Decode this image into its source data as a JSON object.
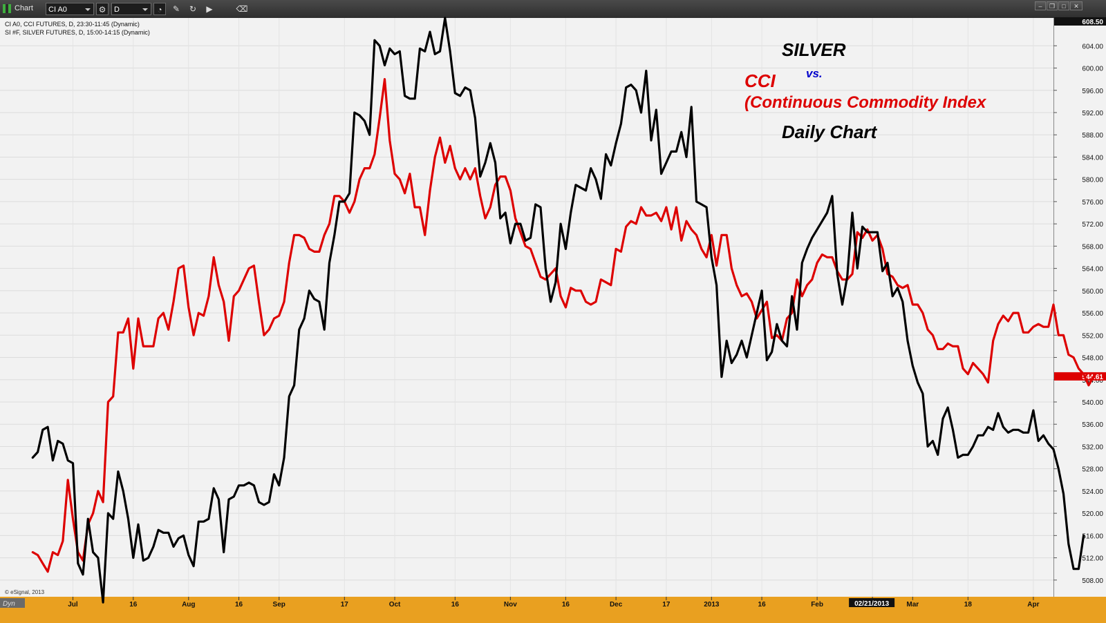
{
  "window": {
    "title": "Chart",
    "symbol_value": "CI A0",
    "interval_value": "D"
  },
  "info": {
    "line1": "CI A0, CCI FUTURES, D, 23:30-11:45 (Dynamic)",
    "line2": "SI #F, SILVER FUTURES, D, 15:00-14:15 (Dynamic)",
    "copyright": "© eSignal, 2013",
    "dyn": "Dyn"
  },
  "toolbar": {
    "icons": [
      "settings-icon",
      "cursor-icon",
      "pencil-icon",
      "refresh-icon",
      "play-icon",
      "eraser-icon"
    ]
  },
  "colors": {
    "cci": "#dd0000",
    "silver": "#000000",
    "vs": "#0000cc",
    "background": "#f2f2f2",
    "axis": "#e9a020"
  },
  "annotations": {
    "silver": "SILVER",
    "vs": "vs.",
    "cci": "CCI",
    "cci_full": "(Continuous Commodity Index",
    "daily": "Daily Chart"
  },
  "chart_data": {
    "type": "line",
    "ylim": [
      505,
      609
    ],
    "y_ticks": [
      508,
      512,
      516,
      520,
      524,
      528,
      532,
      536,
      540,
      544,
      548,
      552,
      556,
      560,
      564,
      568,
      572,
      576,
      580,
      584,
      588,
      592,
      596,
      600,
      604
    ],
    "y_tick_labels": [
      "508.00",
      "512.00",
      "516.00",
      "520.00",
      "524.00",
      "528.00",
      "532.00",
      "536.00",
      "540.00",
      "544.00",
      "548.00",
      "552.00",
      "556.00",
      "560.00",
      "564.00",
      "568.00",
      "572.00",
      "576.00",
      "580.00",
      "584.00",
      "588.00",
      "592.00",
      "596.00",
      "600.00",
      "604.00"
    ],
    "top_label": "608.50",
    "last_value_label": "544.61",
    "x_tick_labels": [
      "Jul",
      "16",
      "Aug",
      "16",
      "Sep",
      "17",
      "Oct",
      "16",
      "Nov",
      "16",
      "Dec",
      "17",
      "2013",
      "16",
      "Feb",
      "02/21/2013",
      "Mar",
      "18",
      "Apr"
    ],
    "x_tick_positions": [
      8,
      20,
      31,
      41,
      49,
      62,
      72,
      84,
      95,
      106,
      116,
      126,
      135,
      145,
      156,
      167,
      175,
      186,
      199
    ],
    "x_range": [
      -6.5,
      203
    ],
    "series": [
      {
        "name": "CI A0",
        "values": [
          513,
          512.5,
          511,
          509.5,
          513,
          512.5,
          515,
          526,
          519,
          513,
          511.5,
          518,
          520,
          524,
          522,
          540,
          541,
          552.5,
          552.5,
          555,
          546,
          555,
          550,
          550,
          550,
          555,
          556,
          553,
          558,
          564,
          564.5,
          557,
          552,
          556,
          555.5,
          559,
          566,
          561,
          558,
          551,
          559,
          560,
          562,
          564,
          564.5,
          558,
          552,
          553,
          555,
          555.5,
          558,
          565,
          570,
          570,
          569.5,
          567.5,
          567,
          567,
          570,
          572,
          577,
          577,
          576,
          574,
          576,
          580,
          582,
          582,
          584.5,
          591,
          598,
          587,
          581,
          580,
          577.5,
          581,
          575,
          575,
          570,
          578,
          584,
          587.5,
          583,
          586,
          582,
          580,
          582,
          580,
          582,
          577,
          573,
          575,
          579,
          580.5,
          580.5,
          578,
          573,
          570.5,
          568,
          567.5,
          565,
          562.5,
          562,
          563,
          564,
          559,
          557,
          560.5,
          560,
          560,
          558,
          557.5,
          558,
          562,
          561.5,
          561,
          567.5,
          567,
          571.5,
          572.5,
          572,
          575,
          573.5,
          573.5,
          574,
          572.5,
          575,
          571,
          575,
          569,
          572.5,
          571,
          570,
          567.5,
          566,
          570,
          564.5,
          570,
          570,
          564,
          561,
          559,
          559.5,
          558,
          555,
          556.5,
          558,
          551.5,
          552,
          551,
          555,
          556,
          562,
          559,
          561,
          562,
          565,
          566.5,
          566,
          566,
          563.5,
          562,
          562,
          563,
          570.5,
          569.5,
          571,
          569,
          570,
          567.5,
          563,
          562.5,
          561,
          560.5,
          561,
          557.5,
          557.5,
          556,
          553,
          552,
          549.5,
          549.5,
          550.5,
          550,
          550,
          546,
          545,
          547,
          546,
          545,
          543.5,
          551,
          554,
          555.5,
          554.5,
          556,
          556,
          552.5,
          552.5,
          553.5,
          554,
          553.5,
          553.5,
          557.5,
          552,
          552,
          548.5,
          548,
          546,
          545,
          543,
          544.6
        ]
      },
      {
        "name": "SI #F",
        "values": [
          530,
          531,
          535,
          535.5,
          529.5,
          533,
          532.5,
          529.5,
          529,
          511,
          509,
          519,
          513,
          512,
          504,
          520,
          519,
          527.5,
          524,
          519,
          512,
          518,
          511.5,
          512,
          514,
          517,
          516.5,
          516.5,
          514,
          515.5,
          516,
          512.5,
          510.5,
          518.5,
          518.5,
          519,
          524.5,
          522.5,
          513,
          522.5,
          523,
          525,
          525,
          525.5,
          525,
          522,
          521.5,
          522,
          527,
          525,
          530,
          541,
          543,
          553,
          555,
          560,
          558.5,
          558,
          553,
          565,
          570,
          576,
          576,
          577.5,
          592,
          591.5,
          590.5,
          588,
          605,
          604,
          600.5,
          603.5,
          602.5,
          603,
          595,
          594.5,
          594.5,
          603.5,
          603,
          606.5,
          602.5,
          603,
          609,
          603,
          595.5,
          595,
          596.5,
          596,
          591,
          580.5,
          583,
          586.5,
          583,
          573,
          574,
          568.5,
          572,
          572,
          569,
          569.5,
          575.5,
          575,
          564,
          558,
          561.5,
          572,
          567.5,
          574,
          579,
          578.5,
          578,
          582,
          580,
          576.5,
          584.5,
          582.5,
          586.5,
          590,
          596.5,
          597,
          596,
          592,
          599.5,
          587,
          592.5,
          581,
          583,
          585,
          585,
          588.5,
          584,
          593,
          576,
          575.5,
          575,
          566,
          561,
          544.5,
          551,
          547,
          548.5,
          551,
          548,
          552,
          556,
          560,
          547.5,
          549,
          554,
          551,
          550,
          559,
          553,
          565,
          567.5,
          569.5,
          571,
          572.5,
          574,
          577,
          563,
          557.5,
          562.5,
          574,
          564,
          571.5,
          570.5,
          570.5,
          570.5,
          563.5,
          565,
          559,
          560.5,
          558,
          551,
          546.5,
          543.5,
          541.5,
          532,
          533,
          530.5,
          537,
          539,
          535,
          530,
          530.5,
          530.5,
          532,
          534,
          534,
          535.5,
          535,
          538,
          535.5,
          534.5,
          535,
          535,
          534.5,
          534.5,
          538.5,
          533,
          534,
          532.5,
          531.5,
          528,
          523.5,
          514.5,
          510,
          510,
          516
        ]
      }
    ]
  }
}
